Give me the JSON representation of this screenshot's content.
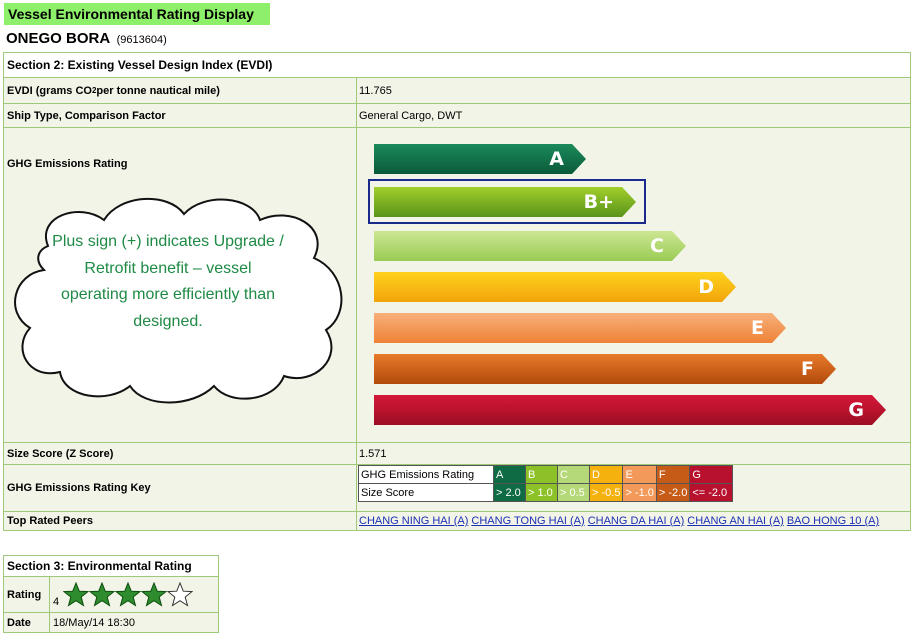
{
  "header": {
    "title": "Vessel Environmental Rating Display"
  },
  "vessel": {
    "name": "ONEGO BORA",
    "imo": "(9613604)"
  },
  "section2": {
    "title": "Section 2: Existing Vessel Design Index (EVDI)",
    "evdi_label_pre": "EVDI (grams CO",
    "evdi_label_sub": "2",
    "evdi_label_post": " per tonne nautical mile)",
    "evdi_value": "11.765",
    "ship_type_label": "Ship Type, Comparison Factor",
    "ship_type_value": "General Cargo, DWT",
    "ghg_label": "GHG Emissions Rating",
    "ghg_rating_selected": "B+",
    "ghg_bars": [
      "A",
      "B+",
      "C",
      "D",
      "E",
      "F",
      "G"
    ],
    "size_score_label": "Size Score (Z Score)",
    "size_score_value": "1.571",
    "key_label": "GHG Emissions Rating Key",
    "key": {
      "row1_label": "GHG Emissions Rating",
      "row2_label": "Size Score",
      "grades": [
        "A",
        "B",
        "C",
        "D",
        "E",
        "F",
        "G"
      ],
      "scores": [
        "> 2.0",
        "> 1.0",
        "> 0.5",
        "> -0.5",
        "> -1.0",
        "> -2.0",
        "<= -2.0"
      ]
    },
    "peers_label": "Top Rated Peers",
    "peers": [
      "CHANG NING HAI (A)",
      "CHANG TONG HAI (A)",
      "CHANG DA HAI (A)",
      "CHANG AN HAI (A)",
      "BAO HONG 10 (A)"
    ]
  },
  "callout": {
    "text": "Plus sign (+) indicates Upgrade / Retrofit benefit – vessel operating more efficiently than designed."
  },
  "section3": {
    "title": "Section 3: Environmental Rating",
    "rating_label": "Rating",
    "rating_value": "4",
    "stars_filled": 4,
    "stars_total": 5,
    "date_label": "Date",
    "date_value": "18/May/14 18:30"
  },
  "colors": {
    "header_bg": "#8ef06a",
    "border": "#9fc87b",
    "row_bg": "#f1f4e6",
    "grade_A": "#0e6b44",
    "grade_B": "#8cc227",
    "grade_C": "#b5d978",
    "grade_D": "#f5b20f",
    "grade_E": "#f3995a",
    "grade_F": "#c65a17",
    "grade_G": "#b8112e",
    "callout_text": "#1e8a45",
    "link": "#1d2fb5"
  },
  "icons": {
    "star": "star-icon",
    "star_empty": "star-outline-icon"
  }
}
